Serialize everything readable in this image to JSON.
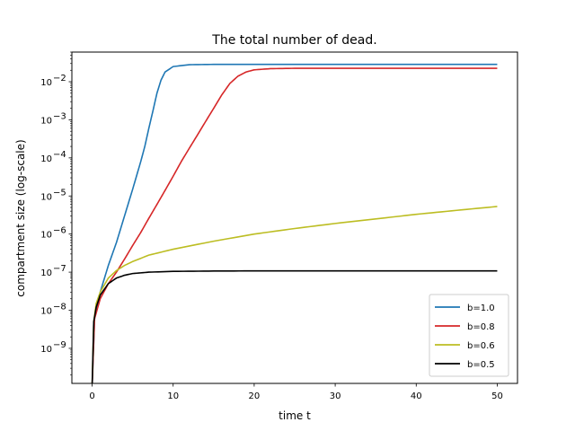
{
  "chart_data": {
    "type": "line",
    "title": "The total number of dead.",
    "xlabel": "time t",
    "ylabel": "compartment size (log-scale)",
    "yscale": "log",
    "xlim": [
      -2.5,
      52.5
    ],
    "ylim": [
      1.2e-10,
      0.06
    ],
    "x_ticks": [
      0,
      10,
      20,
      30,
      40,
      50
    ],
    "x_tick_labels": [
      "0",
      "10",
      "20",
      "30",
      "40",
      "50"
    ],
    "y_ticks": [
      1e-09,
      1e-08,
      1e-07,
      1e-06,
      1e-05,
      0.0001,
      0.001,
      0.01
    ],
    "y_tick_mantissa": "10",
    "y_tick_exponents": [
      "−9",
      "−8",
      "−7",
      "−6",
      "−5",
      "−4",
      "−3",
      "−2"
    ],
    "grid": false,
    "legend_position": "lower-right",
    "series": [
      {
        "name": "b=1.0",
        "color": "#1f77b4",
        "x": [
          0,
          0.3,
          1,
          2,
          3,
          4,
          5,
          6,
          6.5,
          7,
          7.5,
          8,
          8.5,
          9,
          10,
          12,
          15,
          20,
          30,
          40,
          50
        ],
        "y": [
          1e-10,
          6e-09,
          3e-08,
          1.5e-07,
          6e-07,
          3e-06,
          1.5e-05,
          8e-05,
          0.0002,
          0.0006,
          0.0017,
          0.005,
          0.011,
          0.018,
          0.025,
          0.028,
          0.0285,
          0.0285,
          0.0285,
          0.0285,
          0.0285
        ]
      },
      {
        "name": "b=0.8",
        "color": "#d62728",
        "x": [
          0,
          0.3,
          1,
          2,
          3,
          4,
          5,
          6,
          7,
          8,
          9,
          10,
          11,
          12,
          13,
          14,
          15,
          16,
          17,
          18,
          19,
          20,
          22,
          25,
          30,
          40,
          50
        ],
        "y": [
          1e-10,
          6e-09,
          2e-08,
          5e-08,
          1e-07,
          2.2e-07,
          5e-07,
          1.1e-06,
          2.6e-06,
          6e-06,
          1.4e-05,
          3.3e-05,
          8e-05,
          0.00018,
          0.0004,
          0.0009,
          0.002,
          0.0045,
          0.009,
          0.014,
          0.018,
          0.0205,
          0.022,
          0.0225,
          0.0225,
          0.0225,
          0.0225
        ]
      },
      {
        "name": "b=0.6",
        "color": "#bcbd22",
        "x": [
          0,
          0.2,
          0.5,
          1,
          2,
          3,
          4,
          5,
          7,
          10,
          15,
          20,
          25,
          30,
          35,
          40,
          45,
          50
        ],
        "y": [
          1e-10,
          5e-09,
          1.5e-08,
          3e-08,
          7e-08,
          1.1e-07,
          1.5e-07,
          1.9e-07,
          2.8e-07,
          4e-07,
          6.5e-07,
          1e-06,
          1.4e-06,
          1.9e-06,
          2.5e-06,
          3.3e-06,
          4.2e-06,
          5.3e-06
        ]
      },
      {
        "name": "b=0.5",
        "color": "#000000",
        "x": [
          0,
          0.2,
          0.5,
          1,
          2,
          3,
          4,
          5,
          7,
          10,
          15,
          20,
          30,
          40,
          50
        ],
        "y": [
          1e-10,
          5e-09,
          1.2e-08,
          2.5e-08,
          5e-08,
          7e-08,
          8.3e-08,
          9.2e-08,
          1e-07,
          1.05e-07,
          1.07e-07,
          1.08e-07,
          1.08e-07,
          1.08e-07,
          1.08e-07
        ]
      }
    ]
  }
}
